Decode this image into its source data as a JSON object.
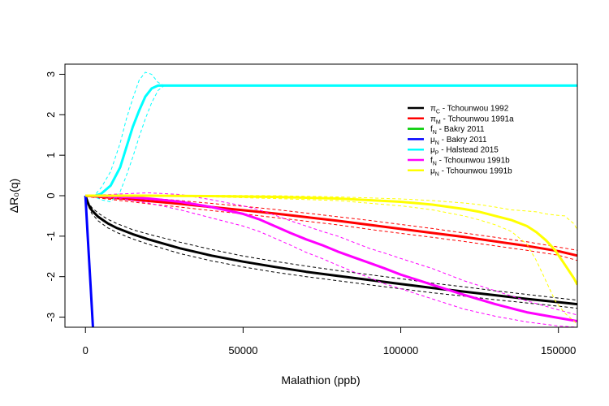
{
  "chart_data": {
    "type": "line",
    "xlabel": "Malathion (ppb)",
    "ylabel": "ΔR₀(q)",
    "xlim": [
      -6500,
      156000
    ],
    "ylim": [
      -3.25,
      3.25
    ],
    "x_ticks": [
      0,
      50000,
      100000,
      150000
    ],
    "y_ticks": [
      -3,
      -2,
      -1,
      0,
      1,
      2,
      3
    ],
    "grid": false,
    "legend_position": "top-right",
    "series": [
      {
        "name": "πC - Tchounwou 1992",
        "sym": "π",
        "sub": "C",
        "rest": " - Tchounwou 1992",
        "color": "#000000",
        "x": [
          0,
          1000,
          2000,
          4000,
          7000,
          10000,
          15000,
          20000,
          30000,
          40000,
          50000,
          60000,
          70000,
          80000,
          90000,
          100000,
          110000,
          120000,
          130000,
          140000,
          150000,
          156000
        ],
        "y": [
          0,
          -0.22,
          -0.36,
          -0.52,
          -0.68,
          -0.8,
          -0.95,
          -1.08,
          -1.3,
          -1.48,
          -1.63,
          -1.76,
          -1.88,
          -1.98,
          -2.08,
          -2.18,
          -2.28,
          -2.37,
          -2.46,
          -2.55,
          -2.63,
          -2.68
        ],
        "upper": [
          0,
          -0.17,
          -0.29,
          -0.43,
          -0.58,
          -0.69,
          -0.84,
          -0.95,
          -1.15,
          -1.33,
          -1.49,
          -1.62,
          -1.74,
          -1.85,
          -1.95,
          -2.05,
          -2.16,
          -2.25,
          -2.35,
          -2.44,
          -2.53,
          -2.58
        ],
        "lower": [
          0,
          -0.27,
          -0.44,
          -0.62,
          -0.79,
          -0.91,
          -1.07,
          -1.2,
          -1.43,
          -1.61,
          -1.76,
          -1.89,
          -2.0,
          -2.1,
          -2.2,
          -2.3,
          -2.4,
          -2.48,
          -2.57,
          -2.65,
          -2.73,
          -2.78
        ]
      },
      {
        "name": "πM - Tchounwou 1991a",
        "sym": "π",
        "sub": "M",
        "rest": " - Tchounwou 1991a",
        "color": "#ff0000",
        "x": [
          0,
          10000,
          20000,
          30000,
          40000,
          50000,
          60000,
          70000,
          80000,
          90000,
          100000,
          110000,
          120000,
          130000,
          140000,
          150000,
          156000
        ],
        "y": [
          0,
          -0.06,
          -0.13,
          -0.2,
          -0.28,
          -0.36,
          -0.44,
          -0.53,
          -0.62,
          -0.72,
          -0.82,
          -0.92,
          -1.02,
          -1.13,
          -1.24,
          -1.37,
          -1.48
        ],
        "upper": [
          0.02,
          -0.01,
          -0.06,
          -0.12,
          -0.19,
          -0.26,
          -0.34,
          -0.43,
          -0.52,
          -0.61,
          -0.71,
          -0.81,
          -0.92,
          -1.03,
          -1.14,
          -1.27,
          -1.35
        ],
        "lower": [
          -0.02,
          -0.11,
          -0.2,
          -0.28,
          -0.37,
          -0.45,
          -0.54,
          -0.63,
          -0.72,
          -0.83,
          -0.93,
          -1.03,
          -1.13,
          -1.24,
          -1.35,
          -1.47,
          -1.6
        ]
      },
      {
        "name": "fN - Bakry 2011",
        "sym": "f",
        "sub": "N",
        "rest": " - Bakry 2011",
        "color": "#00cc00",
        "x": [],
        "y": []
      },
      {
        "name": "μN - Bakry 2011",
        "sym": "μ",
        "sub": "N",
        "rest": " - Bakry 2011",
        "color": "#0000ff",
        "x": [
          0,
          800,
          1600,
          2400
        ],
        "y": [
          0,
          -1.1,
          -2.2,
          -3.3
        ]
      },
      {
        "name": "μP - Halstead 2015",
        "sym": "μ",
        "sub": "P",
        "rest": " - Halstead 2015",
        "color": "#00ffff",
        "x": [
          0,
          3000,
          5000,
          8000,
          11000,
          13000,
          15000,
          17000,
          19000,
          21000,
          23000,
          25000,
          40000,
          80000,
          120000,
          156000
        ],
        "y": [
          0,
          0.0,
          0.05,
          0.25,
          0.7,
          1.2,
          1.7,
          2.1,
          2.45,
          2.65,
          2.72,
          2.72,
          2.72,
          2.72,
          2.72,
          2.72
        ],
        "upper": [
          0,
          0.02,
          0.2,
          0.6,
          1.3,
          1.9,
          2.4,
          2.85,
          3.05,
          3.0,
          2.8,
          2.72,
          2.72,
          2.72,
          2.72,
          2.72
        ],
        "lower": [
          0,
          -0.03,
          -0.1,
          -0.15,
          0.1,
          0.5,
          0.95,
          1.45,
          1.9,
          2.3,
          2.6,
          2.72,
          2.72,
          2.72,
          2.72,
          2.72
        ]
      },
      {
        "name": "fN - Tchounwou 1991b",
        "sym": "f",
        "sub": "N",
        "rest": " - Tchounwou 1991b",
        "color": "#ff00ff",
        "x": [
          0,
          10000,
          20000,
          30000,
          40000,
          50000,
          55000,
          60000,
          65000,
          70000,
          75000,
          80000,
          85000,
          90000,
          95000,
          100000,
          110000,
          120000,
          130000,
          140000,
          150000,
          156000
        ],
        "y": [
          0,
          -0.02,
          -0.07,
          -0.15,
          -0.28,
          -0.45,
          -0.58,
          -0.75,
          -0.92,
          -1.08,
          -1.22,
          -1.38,
          -1.52,
          -1.66,
          -1.8,
          -1.95,
          -2.2,
          -2.45,
          -2.68,
          -2.88,
          -3.02,
          -3.1
        ],
        "upper": [
          0,
          0.04,
          0.07,
          0.03,
          -0.1,
          -0.25,
          -0.35,
          -0.48,
          -0.62,
          -0.75,
          -0.88,
          -1.0,
          -1.15,
          -1.3,
          -1.42,
          -1.55,
          -1.8,
          -2.1,
          -2.35,
          -2.6,
          -2.82,
          -2.95
        ],
        "lower": [
          0,
          -0.06,
          -0.18,
          -0.35,
          -0.55,
          -0.75,
          -0.88,
          -1.05,
          -1.22,
          -1.4,
          -1.55,
          -1.72,
          -1.88,
          -2.02,
          -2.18,
          -2.3,
          -2.55,
          -2.8,
          -2.98,
          -3.12,
          -3.22,
          -3.25
        ]
      },
      {
        "name": "μN - Tchounwou 1991b",
        "sym": "μ",
        "sub": "N",
        "rest": " - Tchounwou 1991b",
        "color": "#ffff00",
        "x": [
          0,
          20000,
          40000,
          60000,
          80000,
          100000,
          110000,
          120000,
          125000,
          130000,
          135000,
          140000,
          143000,
          146000,
          149000,
          152000,
          155000,
          156000
        ],
        "y": [
          0,
          0.0,
          -0.01,
          -0.03,
          -0.07,
          -0.15,
          -0.22,
          -0.33,
          -0.4,
          -0.5,
          -0.6,
          -0.75,
          -0.9,
          -1.1,
          -1.35,
          -1.7,
          -2.05,
          -2.2
        ],
        "upper": [
          0,
          0.01,
          0.01,
          0.0,
          -0.03,
          -0.08,
          -0.12,
          -0.18,
          -0.22,
          -0.28,
          -0.35,
          -0.38,
          -0.4,
          -0.45,
          -0.48,
          -0.5,
          -0.7,
          -0.85
        ],
        "lower": [
          0,
          -0.01,
          -0.03,
          -0.07,
          -0.12,
          -0.25,
          -0.35,
          -0.5,
          -0.6,
          -0.72,
          -0.88,
          -1.2,
          -1.6,
          -2.1,
          -2.6,
          -2.9,
          -3.1,
          -3.2
        ]
      }
    ]
  }
}
